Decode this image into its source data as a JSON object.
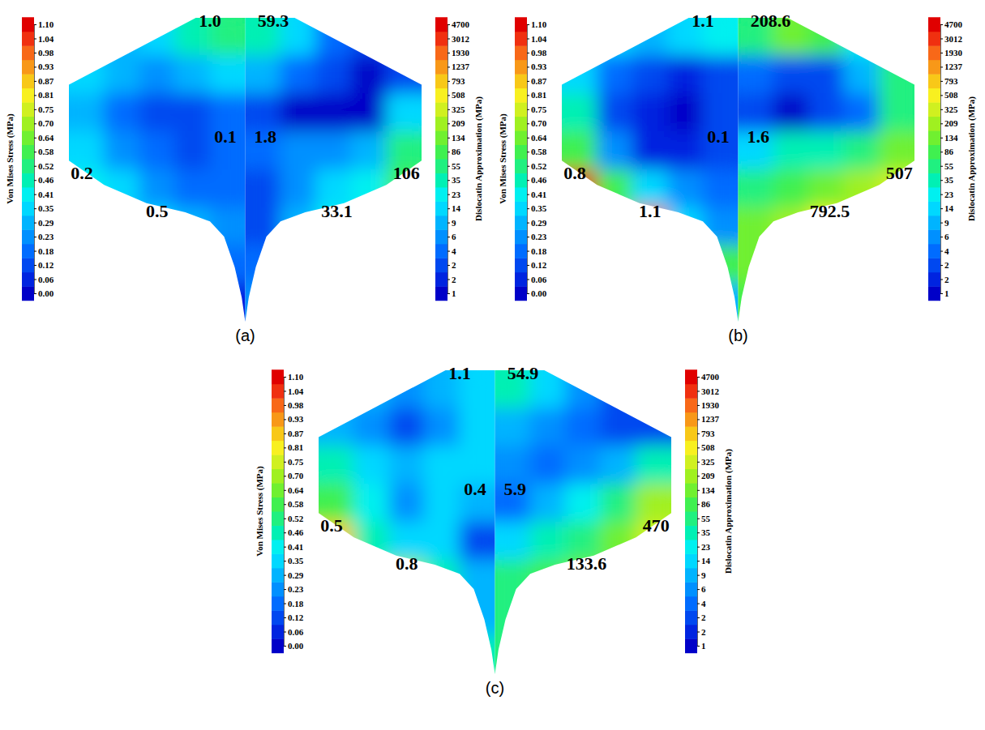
{
  "chart_data": [
    {
      "type": "heatmap",
      "title": "(a)",
      "von_mises": {
        "label": "Von Mises Stress (MPa)",
        "colorbar_ticks": [
          {
            "value": 0,
            "label": "0.00"
          },
          0.06,
          0.12,
          0.18,
          0.23,
          0.29,
          0.35,
          0.41,
          0.46,
          0.52,
          0.58,
          0.64,
          {
            "value": 0.7,
            "label": "0.70"
          },
          0.75,
          0.81,
          0.87,
          0.93,
          0.98,
          1.04,
          {
            "value": 1.1,
            "label": "1.10"
          }
        ],
        "cells": [
          [
            null,
            0.3,
            0.4,
            0.5,
            0.55
          ],
          [
            0.35,
            0.3,
            0.25,
            0.3,
            0.35
          ],
          [
            0.3,
            0.2,
            0.15,
            0.12,
            0.2
          ],
          [
            0.35,
            0.25,
            0.18,
            0.15,
            0.18
          ],
          [
            0.45,
            0.35,
            0.28,
            0.22,
            0.2
          ],
          [
            null,
            null,
            0.4,
            0.3,
            0.25
          ],
          [
            null,
            null,
            null,
            null,
            0.18
          ],
          [
            null,
            null,
            null,
            null,
            0.1
          ]
        ],
        "annotations": {
          "top": "1.0",
          "center": "0.1",
          "left": "0.2",
          "bottom": "0.5"
        }
      },
      "dislocation": {
        "label": "Dislocatin Approximation (MPa)",
        "colorbar_ticks": [
          1,
          2,
          2,
          4,
          6,
          9,
          14,
          23,
          35,
          55,
          86,
          134,
          209,
          325,
          508,
          793,
          1237,
          1930,
          3012,
          4700
        ],
        "cells": [
          [
            40,
            20,
            5,
            2,
            null
          ],
          [
            10,
            4,
            2,
            1.5,
            3
          ],
          [
            3,
            1.5,
            1.2,
            1.2,
            20
          ],
          [
            5,
            6,
            8,
            10,
            60
          ],
          [
            3,
            8,
            15,
            25,
            100
          ],
          [
            2,
            10,
            25,
            null,
            null
          ],
          [
            5,
            null,
            null,
            null,
            null
          ],
          [
            8,
            null,
            null,
            null,
            null
          ]
        ],
        "annotations": {
          "top": "59.3",
          "center": "1.8",
          "right": "106",
          "bottom": "33.1"
        }
      }
    },
    {
      "type": "heatmap",
      "title": "(b)",
      "von_mises": {
        "label": "Von Mises Stress (MPa)",
        "colorbar_ticks": [
          {
            "value": 0,
            "label": "0.00"
          },
          0.06,
          0.12,
          0.18,
          0.23,
          0.29,
          0.35,
          0.41,
          0.46,
          0.52,
          0.58,
          0.64,
          {
            "value": 0.7,
            "label": "0.70"
          },
          0.75,
          0.81,
          0.87,
          0.93,
          0.98,
          1.04,
          {
            "value": 1.1,
            "label": "1.10"
          }
        ],
        "cells": [
          [
            null,
            0.35,
            0.3,
            0.35,
            0.45
          ],
          [
            0.4,
            0.2,
            0.12,
            0.1,
            0.15
          ],
          [
            0.5,
            0.15,
            0.06,
            0.05,
            0.12
          ],
          [
            0.6,
            0.25,
            0.1,
            0.08,
            0.15
          ],
          [
            1.1,
            0.6,
            0.35,
            0.25,
            0.22
          ],
          [
            null,
            null,
            1.0,
            0.4,
            0.25
          ],
          [
            null,
            null,
            null,
            null,
            0.6
          ],
          [
            null,
            null,
            null,
            null,
            0.3
          ]
        ],
        "annotations": {
          "top": "1.1",
          "center": "0.1",
          "left": "0.8",
          "bottom": "1.1"
        }
      },
      "dislocation": {
        "label": "Dislocatin Approximation (MPa)",
        "colorbar_ticks": [
          1,
          2,
          2,
          4,
          6,
          9,
          14,
          23,
          35,
          55,
          86,
          134,
          209,
          325,
          508,
          793,
          1237,
          1930,
          3012,
          4700
        ],
        "cells": [
          [
            60,
            150,
            100,
            30,
            null
          ],
          [
            5,
            2,
            3,
            10,
            60
          ],
          [
            2,
            1.5,
            2,
            4,
            80
          ],
          [
            15,
            40,
            50,
            60,
            200
          ],
          [
            60,
            100,
            150,
            300,
            500
          ],
          [
            150,
            300,
            700,
            null,
            null
          ],
          [
            200,
            null,
            null,
            null,
            null
          ],
          [
            100,
            null,
            null,
            null,
            null
          ]
        ],
        "annotations": {
          "top": "208.6",
          "center": "1.6",
          "right": "507",
          "bottom": "792.5"
        }
      }
    },
    {
      "type": "heatmap",
      "title": "(c)",
      "von_mises": {
        "label": "Von Mises Stress (MPa)",
        "colorbar_ticks": [
          {
            "value": 0,
            "label": "0.00"
          },
          0.06,
          0.12,
          0.18,
          0.23,
          0.29,
          0.35,
          0.41,
          0.46,
          0.52,
          0.58,
          0.64,
          {
            "value": 0.7,
            "label": "0.70"
          },
          0.75,
          0.81,
          0.87,
          0.93,
          0.98,
          1.04,
          {
            "value": 1.1,
            "label": "1.10"
          }
        ],
        "cells": [
          [
            null,
            0.3,
            0.25,
            0.3,
            0.4
          ],
          [
            0.3,
            0.25,
            0.12,
            0.25,
            0.4
          ],
          [
            0.5,
            0.4,
            0.3,
            0.35,
            0.4
          ],
          [
            0.6,
            0.45,
            0.25,
            0.35,
            0.3
          ],
          [
            0.9,
            0.5,
            0.4,
            0.4,
            0.15
          ],
          [
            null,
            null,
            0.7,
            0.5,
            0.3
          ],
          [
            null,
            null,
            null,
            null,
            0.3
          ],
          [
            null,
            null,
            null,
            null,
            0.5
          ]
        ],
        "annotations": {
          "top": "1.1",
          "center": "0.4",
          "left": "0.5",
          "bottom": "0.8"
        }
      },
      "dislocation": {
        "label": "Dislocatin Approximation (MPa)",
        "colorbar_ticks": [
          1,
          2,
          2,
          4,
          6,
          9,
          14,
          23,
          35,
          55,
          86,
          134,
          209,
          325,
          508,
          793,
          1237,
          1930,
          3012,
          4700
        ],
        "cells": [
          [
            50,
            20,
            6,
            2,
            null
          ],
          [
            10,
            8,
            4,
            2,
            3
          ],
          [
            6,
            4,
            6,
            10,
            40
          ],
          [
            5,
            10,
            30,
            60,
            300
          ],
          [
            20,
            50,
            80,
            150,
            400
          ],
          [
            60,
            100,
            150,
            null,
            null
          ],
          [
            80,
            null,
            null,
            null,
            null
          ],
          [
            60,
            null,
            null,
            null,
            null
          ]
        ],
        "annotations": {
          "top": "54.9",
          "center": "5.9",
          "right": "470",
          "bottom": "133.6"
        }
      }
    }
  ]
}
